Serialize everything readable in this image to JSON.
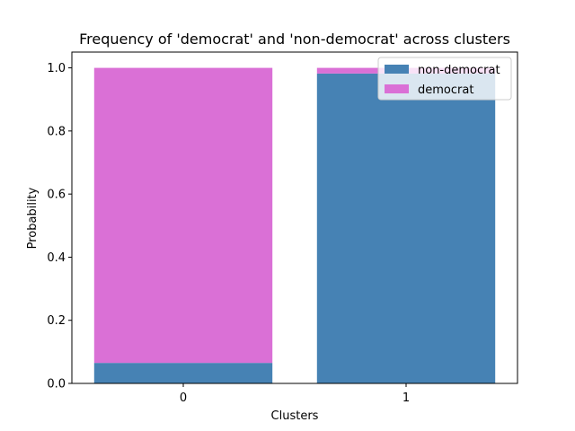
{
  "chart_data": {
    "type": "bar",
    "stacked": true,
    "title": "Frequency of 'democrat' and 'non-democrat' across clusters",
    "xlabel": "Clusters",
    "ylabel": "Probability",
    "categories": [
      "0",
      "1"
    ],
    "ylim": [
      0,
      1.05
    ],
    "yticks": [
      "0.0",
      "0.2",
      "0.4",
      "0.6",
      "0.8",
      "1.0"
    ],
    "grid": false,
    "legend_position": "top-right",
    "series": [
      {
        "name": "non-democrat",
        "color": "#4682B4",
        "values": [
          0.065,
          0.982
        ]
      },
      {
        "name": "democrat",
        "color": "#DA70D6",
        "values": [
          0.935,
          0.018
        ]
      }
    ]
  }
}
